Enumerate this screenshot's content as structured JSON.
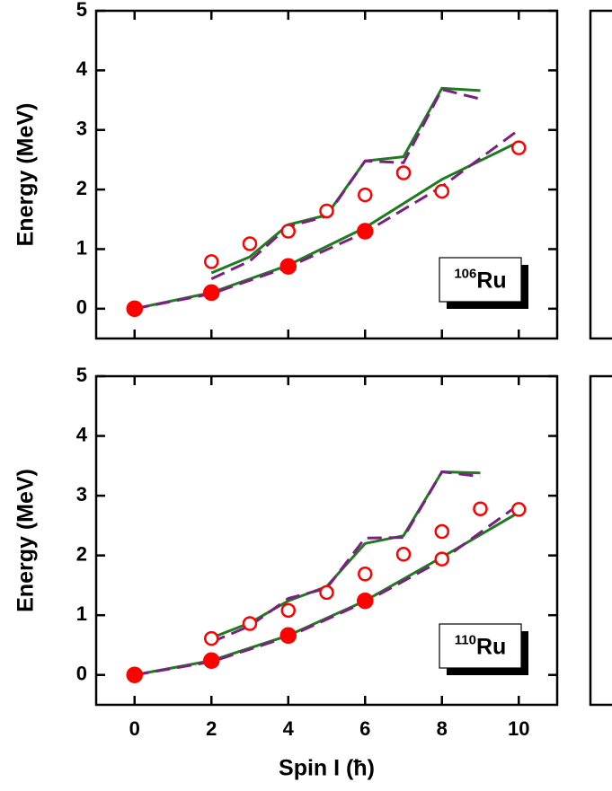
{
  "chart_data": [
    {
      "type": "line",
      "ylabel": "Energy (MeV)",
      "xlim": [
        -1,
        11
      ],
      "xticks": [
        0,
        2,
        4,
        6,
        8,
        10
      ],
      "xtick_labels": false,
      "ylim": [
        -0.5,
        5
      ],
      "yticks": [
        0,
        1,
        2,
        3,
        4,
        5
      ],
      "isotope": {
        "mass": "106",
        "symbol": "Ru"
      },
      "series": [
        {
          "style": "line",
          "color": "#1e7b1e",
          "x": [
            0,
            2,
            4,
            6,
            8,
            10
          ],
          "values": [
            0,
            0.27,
            0.73,
            1.36,
            2.17,
            2.8
          ]
        },
        {
          "style": "dashed",
          "color": "#7b2082",
          "x": [
            0,
            2,
            4,
            6,
            8,
            10
          ],
          "values": [
            0,
            0.25,
            0.7,
            1.28,
            2.05,
            3.0
          ]
        },
        {
          "style": "line",
          "color": "#1e7b1e",
          "x": [
            2,
            3,
            4,
            5,
            6,
            7,
            8,
            9
          ],
          "values": [
            0.6,
            0.87,
            1.41,
            1.57,
            2.48,
            2.55,
            3.7,
            3.66
          ]
        },
        {
          "style": "dashed",
          "color": "#7b2082",
          "x": [
            2,
            3,
            4,
            5,
            6,
            7,
            8,
            9
          ],
          "values": [
            0.5,
            0.8,
            1.38,
            1.55,
            2.48,
            2.45,
            3.68,
            3.52
          ]
        },
        {
          "style": "open-marker",
          "color": "#ff0000",
          "x": [
            2,
            3,
            4,
            5,
            6,
            7,
            8,
            10
          ],
          "values": [
            0.79,
            1.09,
            1.3,
            1.64,
            1.91,
            2.28,
            1.97,
            2.7
          ]
        },
        {
          "style": "filled-marker",
          "color": "#ff0000",
          "x": [
            0,
            2,
            4,
            6
          ],
          "values": [
            0,
            0.27,
            0.71,
            1.3
          ]
        }
      ]
    },
    {
      "type": "line",
      "ylabel": "Energy (MeV)",
      "xlabel": "Spin I (ħ)",
      "xlim": [
        -1,
        11
      ],
      "xticks": [
        0,
        2,
        4,
        6,
        8,
        10
      ],
      "xtick_labels": true,
      "ylim": [
        -0.5,
        5
      ],
      "yticks": [
        0,
        1,
        2,
        3,
        4,
        5
      ],
      "isotope": {
        "mass": "110",
        "symbol": "Ru"
      },
      "series": [
        {
          "style": "line",
          "color": "#1e7b1e",
          "x": [
            0,
            2,
            4,
            6,
            8,
            10
          ],
          "values": [
            0,
            0.24,
            0.66,
            1.24,
            1.97,
            2.72
          ]
        },
        {
          "style": "dashed",
          "color": "#7b2082",
          "x": [
            0,
            2,
            4,
            6,
            8,
            10
          ],
          "values": [
            0,
            0.22,
            0.64,
            1.22,
            1.92,
            2.85
          ]
        },
        {
          "style": "line",
          "color": "#1e7b1e",
          "x": [
            2,
            3,
            4,
            5,
            6,
            7,
            8,
            9
          ],
          "values": [
            0.62,
            0.87,
            1.24,
            1.48,
            2.2,
            2.33,
            3.4,
            3.38
          ]
        },
        {
          "style": "dashed",
          "color": "#7b2082",
          "x": [
            2,
            3,
            4,
            5,
            6,
            7,
            8,
            9
          ],
          "values": [
            0.55,
            0.82,
            1.28,
            1.45,
            2.29,
            2.3,
            3.4,
            3.32
          ]
        },
        {
          "style": "open-marker",
          "color": "#ff0000",
          "x": [
            2,
            3,
            4,
            5,
            6,
            7,
            8,
            8,
            9,
            10
          ],
          "values": [
            0.61,
            0.86,
            1.08,
            1.38,
            1.69,
            2.02,
            2.4,
            1.94,
            2.78,
            2.77
          ]
        },
        {
          "style": "filled-marker",
          "color": "#ff0000",
          "x": [
            0,
            2,
            4,
            6
          ],
          "values": [
            0,
            0.24,
            0.66,
            1.24
          ]
        }
      ]
    }
  ]
}
